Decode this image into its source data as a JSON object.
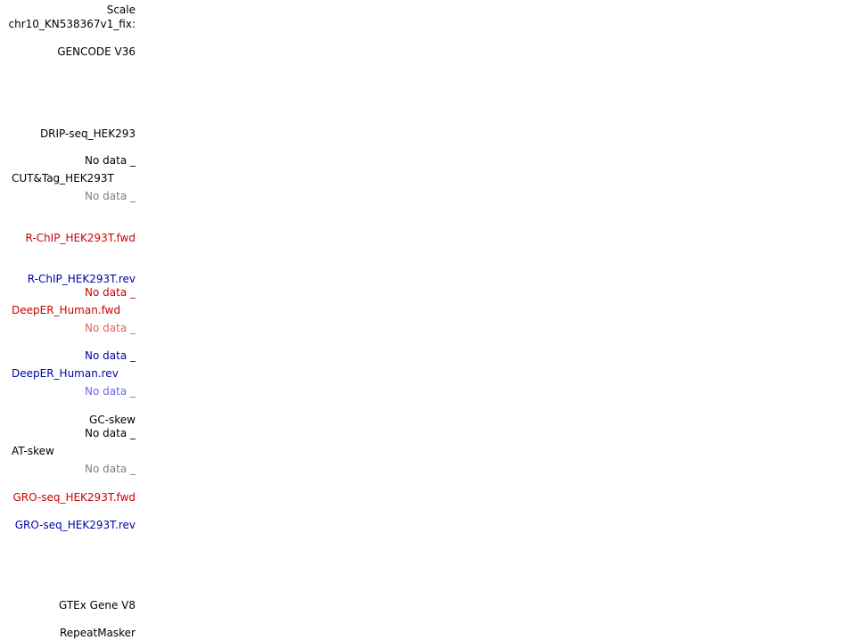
{
  "tracks": {
    "scale": "Scale",
    "chrom": "chr10_KN538367v1_fix:",
    "gencode": "GENCODE V36",
    "drip": "DRIP-seq_HEK293",
    "drip_nodata": "No data _",
    "cuttag": "CUT&Tag_HEK293T",
    "cuttag_nodata": "No data _",
    "rchip_fwd": "R-ChIP_HEK293T.fwd",
    "rchip_rev": "R-ChIP_HEK293T.rev",
    "rchip_nodata": "No data _",
    "deeper_fwd": "DeepER_Human.fwd",
    "deeper_fwd_nodata": "No data _",
    "deeper_rev_nodata_top": "No data _",
    "deeper_rev": "DeepER_Human.rev",
    "deeper_rev_nodata": "No data _",
    "gcskew": "GC-skew",
    "gcskew_nodata": "No data _",
    "atskew": "AT-skew",
    "atskew_nodata": "No data _",
    "groseq_fwd": "GRO-seq_HEK293T.fwd",
    "groseq_rev": "GRO-seq_HEK293T.rev",
    "gtex": "GTEx Gene V8",
    "repeatmasker": "RepeatMasker"
  },
  "colors": {
    "black": "#000000",
    "gray": "#808080",
    "red": "#cc0000",
    "blue": "#0000aa",
    "pink": "#e06060",
    "lightblue": "#6b6be0"
  }
}
